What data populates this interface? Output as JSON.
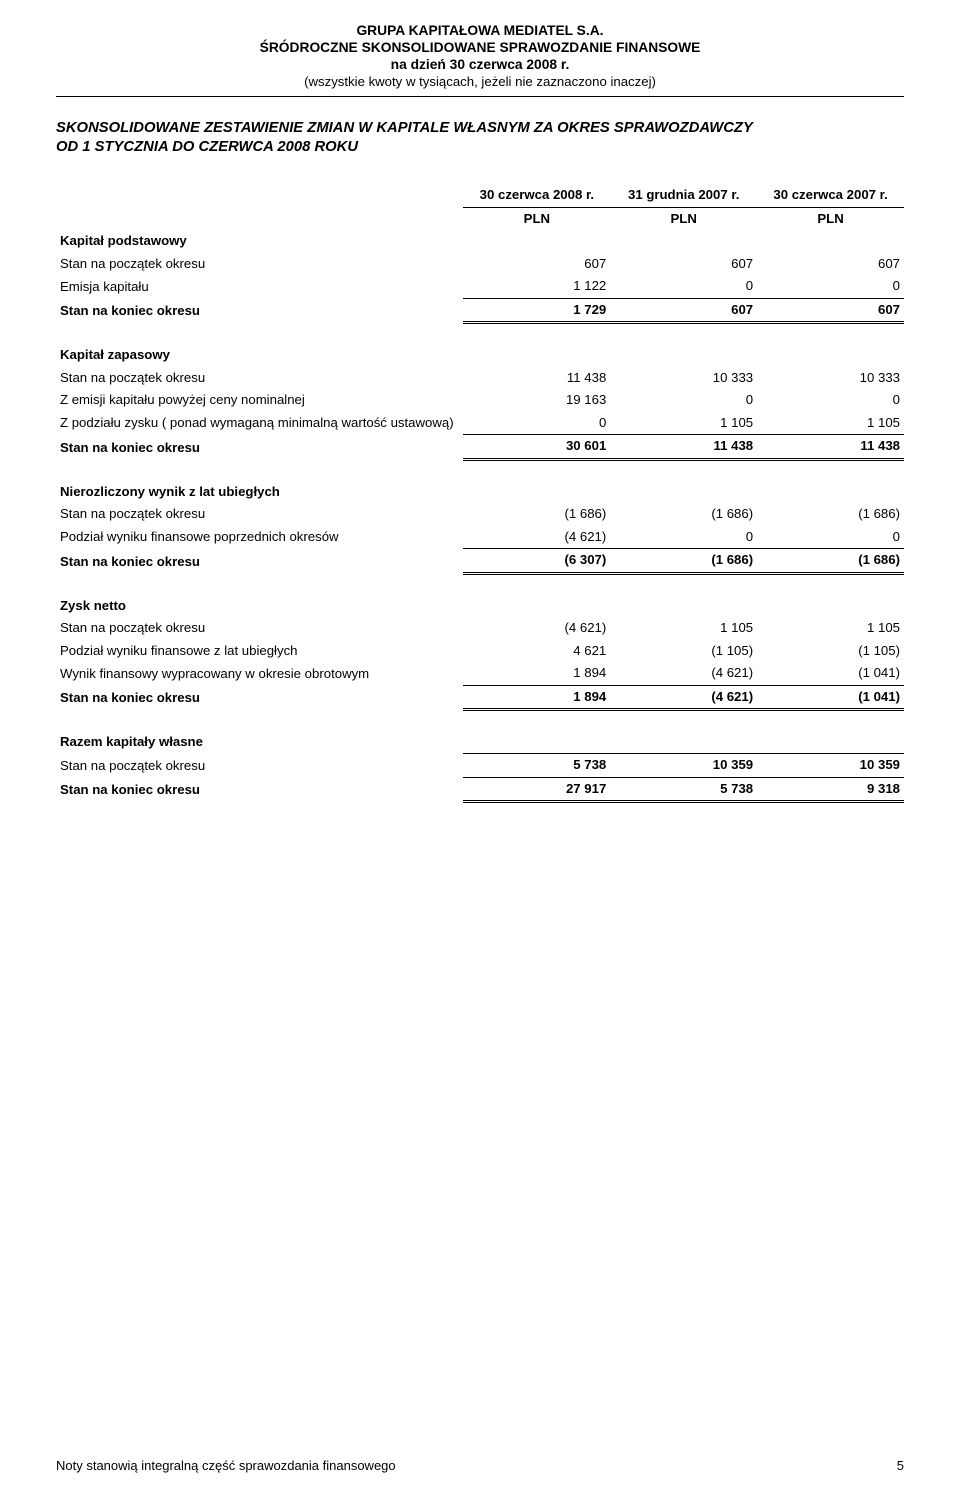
{
  "header": {
    "line1": "GRUPA KAPITAŁOWA MEDIATEL S.A.",
    "line2": "ŚRÓDROCZNE SKONSOLIDOWANE SPRAWOZDANIE FINANSOWE",
    "line3": "na dzień 30 czerwca 2008 r.",
    "line4": "(wszystkie kwoty w tysiącach, jeżeli nie zaznaczono inaczej)"
  },
  "title": "SKONSOLIDOWANE ZESTAWIENIE ZMIAN W KAPITALE WŁASNYM ZA OKRES SPRAWOZDAWCZY OD 1 STYCZNIA DO CZERWCA 2008 ROKU",
  "col_headers": {
    "c1": "30 czerwca 2008 r.",
    "c2": "31 grudnia 2007 r.",
    "c3": "30 czerwca 2007 r.",
    "unit": "PLN"
  },
  "sections": {
    "kp": {
      "heading": "Kapitał podstawowy",
      "r1": {
        "label": "Stan na początek okresu",
        "v": [
          "607",
          "607",
          "607"
        ]
      },
      "r2": {
        "label": "Emisja kapitału",
        "v": [
          "1 122",
          "0",
          "0"
        ]
      },
      "r3": {
        "label": "Stan na koniec okresu",
        "v": [
          "1 729",
          "607",
          "607"
        ]
      }
    },
    "kz": {
      "heading": "Kapitał zapasowy",
      "r1": {
        "label": "Stan na początek okresu",
        "v": [
          "11 438",
          "10 333",
          "10 333"
        ]
      },
      "r2": {
        "label": "Z emisji kapitału powyżej ceny nominalnej",
        "v": [
          "19 163",
          "0",
          "0"
        ]
      },
      "r3": {
        "label": "Z podziału zysku ( ponad wymaganą minimalną wartość ustawową)",
        "v": [
          "0",
          "1 105",
          "1 105"
        ]
      },
      "r4": {
        "label": "Stan na koniec okresu",
        "v": [
          "30 601",
          "11 438",
          "11 438"
        ]
      }
    },
    "nw": {
      "heading": "Nierozliczony wynik z lat ubiegłych",
      "r1": {
        "label": "Stan na początek okresu",
        "v": [
          "(1 686)",
          "(1 686)",
          "(1 686)"
        ]
      },
      "r2": {
        "label": "Podział wyniku finansowe poprzednich okresów",
        "v": [
          "(4 621)",
          "0",
          "0"
        ]
      },
      "r3": {
        "label": "Stan na koniec okresu",
        "v": [
          "(6 307)",
          "(1 686)",
          "(1 686)"
        ]
      }
    },
    "zn": {
      "heading": "Zysk netto",
      "r1": {
        "label": "Stan na początek okresu",
        "v": [
          "(4 621)",
          "1 105",
          "1 105"
        ]
      },
      "r2": {
        "label": "Podział wyniku finansowe z lat ubiegłych",
        "v": [
          "4 621",
          "(1 105)",
          "(1 105)"
        ]
      },
      "r3": {
        "label": "Wynik finansowy wypracowany w okresie obrotowym",
        "v": [
          "1 894",
          "(4 621)",
          "(1 041)"
        ]
      },
      "r4": {
        "label": "Stan na koniec okresu",
        "v": [
          "1 894",
          "(4 621)",
          "(1 041)"
        ]
      }
    },
    "rk": {
      "heading": "Razem kapitały własne",
      "r1": {
        "label": "Stan na początek okresu",
        "v": [
          "5 738",
          "10 359",
          "10 359"
        ]
      },
      "r2": {
        "label": "Stan na koniec okresu",
        "v": [
          "27 917",
          "5 738",
          "9 318"
        ]
      }
    }
  },
  "footer": {
    "text": "Noty stanowią integralną część sprawozdania finansowego",
    "page": "5"
  }
}
